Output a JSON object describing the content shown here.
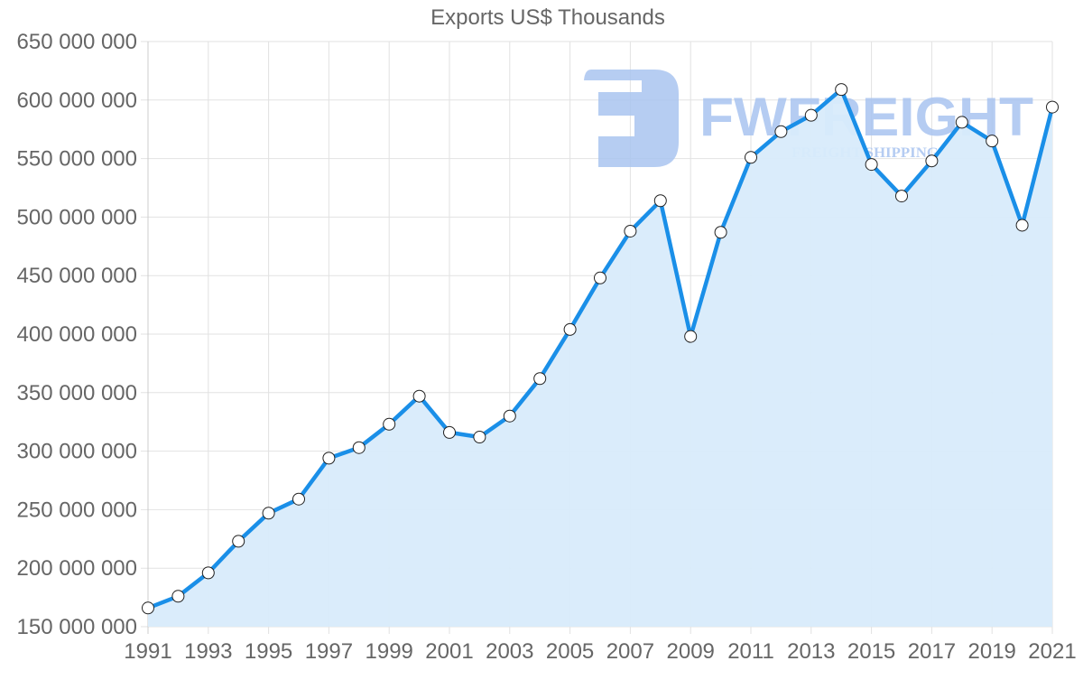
{
  "chart_data": {
    "type": "line",
    "title": "Exports US$ Thousands",
    "xlabel": "",
    "ylabel": "",
    "ylim": [
      150000000,
      650000000
    ],
    "yticks": [
      150000000,
      200000000,
      250000000,
      300000000,
      350000000,
      400000000,
      450000000,
      500000000,
      550000000,
      600000000,
      650000000
    ],
    "ytick_labels": [
      "150 000 000",
      "200 000 000",
      "250 000 000",
      "300 000 000",
      "350 000 000",
      "400 000 000",
      "450 000 000",
      "500 000 000",
      "550 000 000",
      "600 000 000",
      "650 000 000"
    ],
    "xtick_labels": [
      "1991",
      "1993",
      "1995",
      "1997",
      "1999",
      "2001",
      "2003",
      "2005",
      "2007",
      "2009",
      "2011",
      "2013",
      "2015",
      "2017",
      "2019",
      "2021"
    ],
    "grid": true,
    "legend": null,
    "fill": true,
    "x": [
      1991,
      1992,
      1993,
      1994,
      1995,
      1996,
      1997,
      1998,
      1999,
      2000,
      2001,
      2002,
      2003,
      2004,
      2005,
      2006,
      2007,
      2008,
      2009,
      2010,
      2011,
      2012,
      2013,
      2014,
      2015,
      2016,
      2017,
      2018,
      2019,
      2020,
      2021
    ],
    "series": [
      {
        "name": "Exports US$ Thousands",
        "values": [
          166000000,
          176000000,
          196000000,
          223000000,
          247000000,
          259000000,
          294000000,
          303000000,
          323000000,
          347000000,
          316000000,
          312000000,
          330000000,
          362000000,
          404000000,
          448000000,
          488000000,
          514000000,
          398000000,
          487000000,
          551000000,
          573000000,
          587000000,
          609000000,
          545000000,
          518000000,
          548000000,
          581000000,
          565000000,
          493000000,
          594000000
        ]
      }
    ]
  },
  "colors": {
    "line": "#1a8fe8",
    "fill": "#d8ebfb",
    "grid": "#e2e2e2",
    "axis": "#cccccc",
    "text": "#666666",
    "point_fill": "#ffffff",
    "point_stroke": "#222222",
    "watermark": "#a9c4f0"
  },
  "watermark": {
    "brand": "FWFREIGHT",
    "tagline": "FREIGHT SHIPPING"
  }
}
